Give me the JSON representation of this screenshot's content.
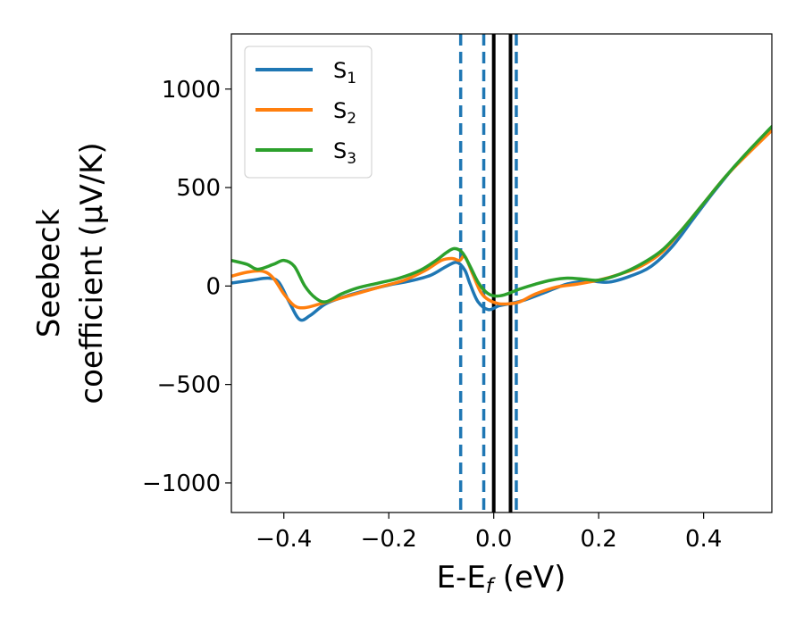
{
  "chart_data": {
    "type": "line",
    "title": "",
    "xlabel": {
      "main": "E-E",
      "sub": "f",
      "unit": " (eV)"
    },
    "ylabel": {
      "line1": "Seebeck",
      "line2": "coefficient  (μV/K)"
    },
    "xlim": [
      -0.5,
      0.53
    ],
    "ylim": [
      -1150,
      1280
    ],
    "xticks": [
      -0.4,
      -0.2,
      0.0,
      0.2,
      0.4
    ],
    "xtick_labels": [
      "−0.4",
      "−0.2",
      "0.0",
      "0.2",
      "0.4"
    ],
    "yticks": [
      -1000,
      -500,
      0,
      500,
      1000
    ],
    "ytick_labels": [
      "−1000",
      "−500",
      "0",
      "500",
      "1000"
    ],
    "legend_position": "top-left",
    "series": [
      {
        "name": "S",
        "sub": "1",
        "color": "#1f77b4",
        "x": [
          -0.5,
          -0.46,
          -0.43,
          -0.41,
          -0.39,
          -0.37,
          -0.35,
          -0.32,
          -0.28,
          -0.24,
          -0.2,
          -0.16,
          -0.12,
          -0.09,
          -0.07,
          -0.055,
          -0.045,
          -0.03,
          -0.01,
          0.01,
          0.03,
          0.06,
          0.1,
          0.14,
          0.18,
          0.22,
          0.26,
          0.3,
          0.34,
          0.38,
          0.42,
          0.46,
          0.5,
          0.53
        ],
        "y": [
          15,
          30,
          40,
          20,
          -80,
          -170,
          -150,
          -90,
          -50,
          -20,
          5,
          25,
          55,
          100,
          120,
          80,
          10,
          -80,
          -120,
          -100,
          -90,
          -70,
          -30,
          10,
          25,
          20,
          50,
          100,
          200,
          340,
          480,
          610,
          720,
          800
        ]
      },
      {
        "name": "S",
        "sub": "2",
        "color": "#ff7f0e",
        "x": [
          -0.5,
          -0.47,
          -0.44,
          -0.42,
          -0.4,
          -0.38,
          -0.36,
          -0.33,
          -0.29,
          -0.25,
          -0.21,
          -0.17,
          -0.13,
          -0.1,
          -0.08,
          -0.065,
          -0.055,
          -0.04,
          -0.025,
          -0.01,
          0.01,
          0.03,
          0.05,
          0.08,
          0.12,
          0.16,
          0.2,
          0.24,
          0.28,
          0.32,
          0.36,
          0.4,
          0.44,
          0.48,
          0.53
        ],
        "y": [
          50,
          70,
          75,
          40,
          -40,
          -100,
          -110,
          -90,
          -60,
          -30,
          0,
          30,
          80,
          130,
          140,
          130,
          150,
          60,
          -30,
          -70,
          -90,
          -90,
          -80,
          -40,
          -5,
          10,
          30,
          60,
          100,
          170,
          290,
          420,
          550,
          660,
          790
        ]
      },
      {
        "name": "S",
        "sub": "3",
        "color": "#2ca02c",
        "x": [
          -0.5,
          -0.47,
          -0.45,
          -0.42,
          -0.4,
          -0.38,
          -0.36,
          -0.34,
          -0.32,
          -0.29,
          -0.26,
          -0.22,
          -0.18,
          -0.14,
          -0.11,
          -0.09,
          -0.075,
          -0.06,
          -0.045,
          -0.03,
          -0.015,
          0.0,
          0.02,
          0.05,
          0.08,
          0.11,
          0.14,
          0.17,
          0.2,
          0.24,
          0.28,
          0.32,
          0.36,
          0.4,
          0.44,
          0.48,
          0.53
        ],
        "y": [
          130,
          110,
          85,
          110,
          130,
          100,
          0,
          -60,
          -80,
          -40,
          -10,
          15,
          40,
          80,
          130,
          170,
          190,
          170,
          100,
          20,
          -30,
          -50,
          -45,
          -15,
          10,
          30,
          40,
          35,
          30,
          60,
          110,
          180,
          290,
          420,
          550,
          670,
          810
        ]
      }
    ],
    "vlines": [
      {
        "x": -0.063,
        "style": "dashed",
        "color": "#1f77b4"
      },
      {
        "x": -0.019,
        "style": "dashed",
        "color": "#1f77b4"
      },
      {
        "x": 0.0,
        "style": "solid",
        "color": "#000000"
      },
      {
        "x": 0.032,
        "style": "solid",
        "color": "#000000"
      },
      {
        "x": 0.043,
        "style": "dashed",
        "color": "#1f77b4"
      }
    ]
  }
}
